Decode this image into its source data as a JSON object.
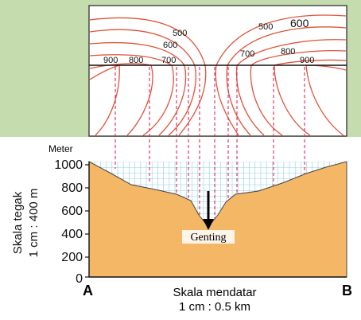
{
  "contour_map": {
    "bg_color": "#c4dcae",
    "contour_color": "#e0533a",
    "labels_top": [
      "500",
      "600",
      "500",
      "600"
    ],
    "labels_line": [
      "900",
      "800",
      "700",
      "700",
      "800",
      "900"
    ]
  },
  "profile": {
    "y_unit": "Meter",
    "y_ticks": [
      "1000",
      "800",
      "600",
      "400",
      "200",
      "0"
    ],
    "y_axis_title_line1": "Skala tegak",
    "y_axis_title_line2": "1 cm : 400 m",
    "x_title_line1": "Skala mendatar",
    "x_title_line2": "1 cm : 0.5 km",
    "left_end": "A",
    "right_end": "B",
    "annotation": "Genting",
    "fill_color": "#f4b766",
    "grid_color": "#8fd0e6",
    "dash_color": "#e0235a"
  }
}
